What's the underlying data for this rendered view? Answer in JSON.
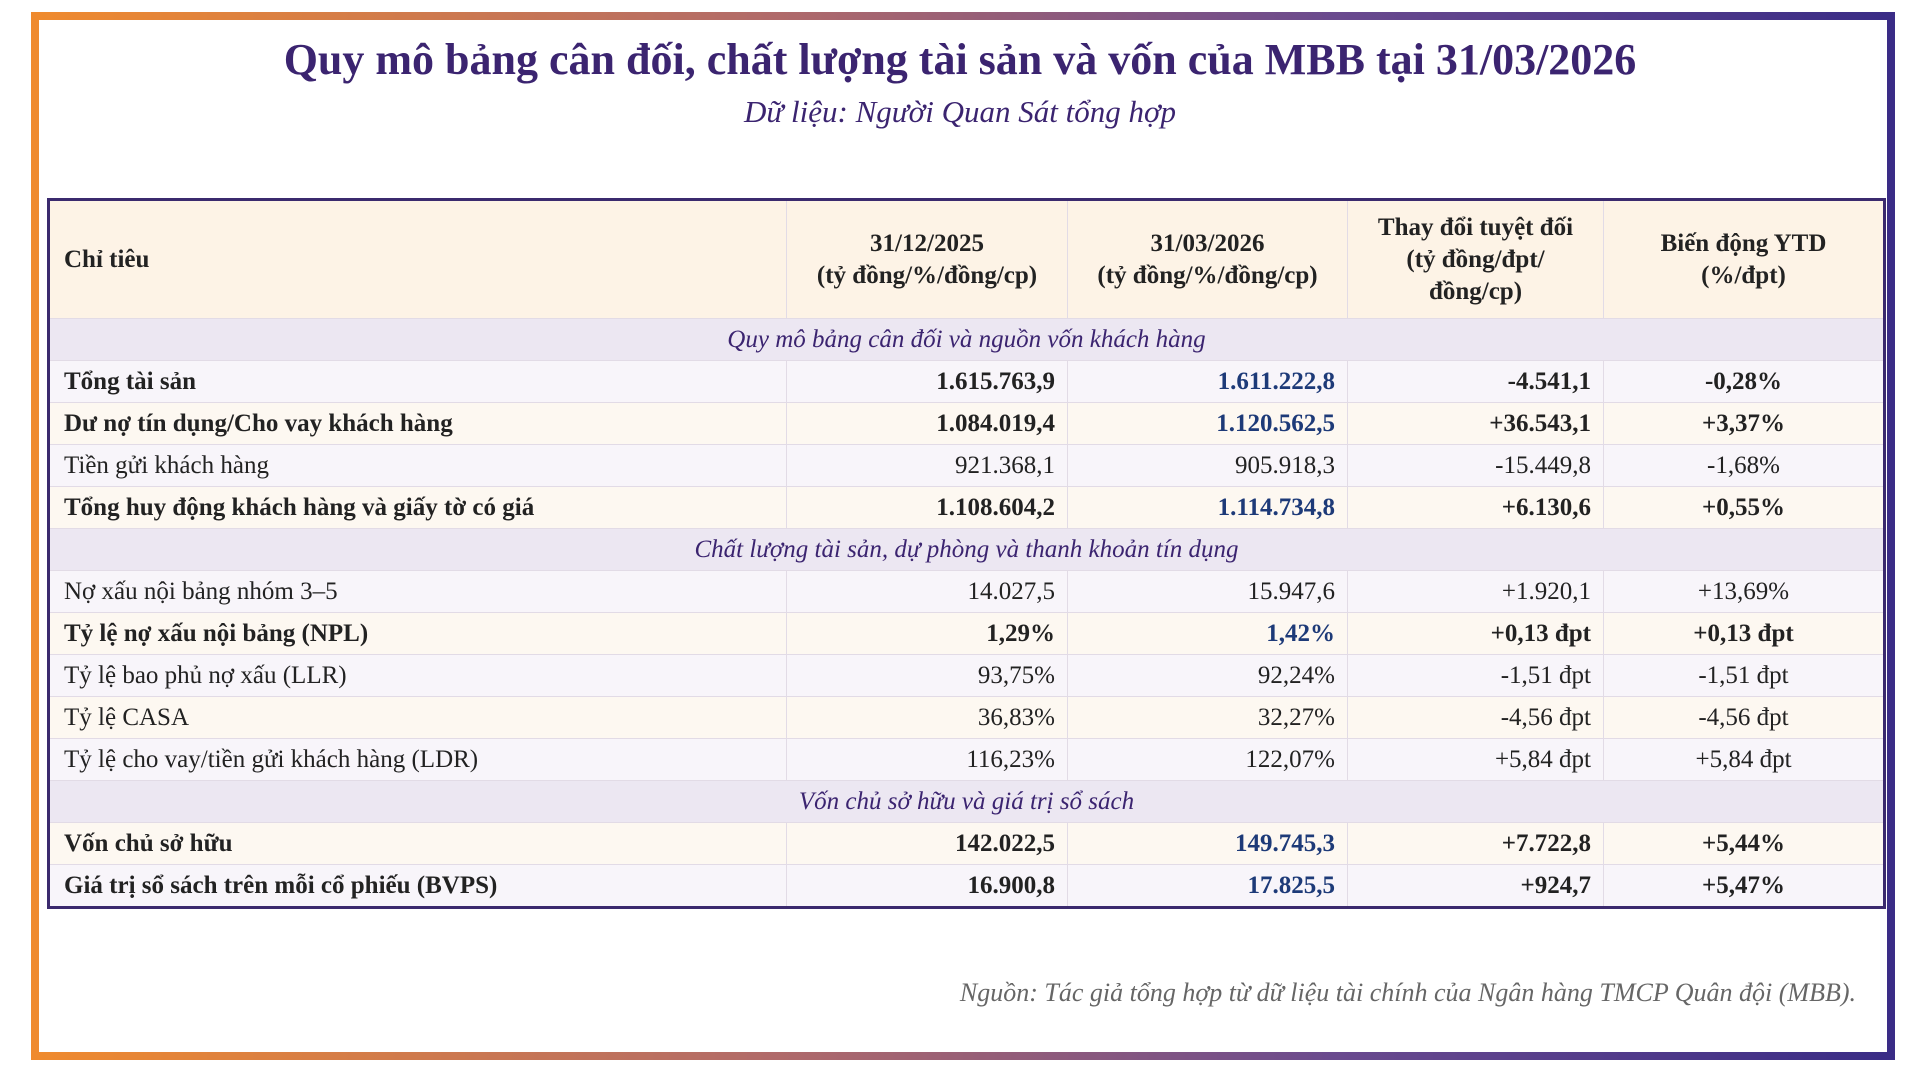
{
  "header": {
    "title": "Quy mô bảng cân đối, chất lượng tài sản và vốn của MBB tại 31/03/2026",
    "subtitle": "Dữ liệu: Người Quan Sát tổng hợp"
  },
  "table": {
    "columns": [
      {
        "label": "Chỉ tiêu"
      },
      {
        "label": "31/12/2025",
        "unit": "(tỷ đồng/%/đồng/cp)"
      },
      {
        "label": "31/03/2026",
        "unit": "(tỷ đồng/%/đồng/cp)"
      },
      {
        "label": "Thay đổi tuyệt đối",
        "unit": "(tỷ đồng/đpt/đồng/cp)"
      },
      {
        "label": "Biến động YTD",
        "unit": "(%/đpt)"
      }
    ],
    "sections": [
      {
        "title": "Quy mô bảng cân đối và nguồn vốn khách hàng",
        "rows": [
          {
            "bold": true,
            "cells": [
              "Tổng tài sản",
              "1.615.763,9",
              "1.611.222,8",
              "-4.541,1",
              "-0,28%"
            ]
          },
          {
            "bold": true,
            "cells": [
              "Dư nợ tín dụng/Cho vay khách hàng",
              "1.084.019,4",
              "1.120.562,5",
              "+36.543,1",
              "+3,37%"
            ]
          },
          {
            "bold": false,
            "cells": [
              "Tiền gửi khách hàng",
              "921.368,1",
              "905.918,3",
              "-15.449,8",
              "-1,68%"
            ]
          },
          {
            "bold": true,
            "cells": [
              "Tổng huy động khách hàng và giấy tờ có giá",
              "1.108.604,2",
              "1.114.734,8",
              "+6.130,6",
              "+0,55%"
            ]
          }
        ]
      },
      {
        "title": "Chất lượng tài sản, dự phòng và thanh khoản tín dụng",
        "rows": [
          {
            "bold": false,
            "cells": [
              "Nợ xấu nội bảng nhóm 3–5",
              "14.027,5",
              "15.947,6",
              "+1.920,1",
              "+13,69%"
            ]
          },
          {
            "bold": true,
            "cells": [
              "Tỷ lệ nợ xấu nội bảng (NPL)",
              "1,29%",
              "1,42%",
              "+0,13 đpt",
              "+0,13 đpt"
            ]
          },
          {
            "bold": false,
            "cells": [
              "Tỷ lệ bao phủ nợ xấu (LLR)",
              "93,75%",
              "92,24%",
              "-1,51 đpt",
              "-1,51 đpt"
            ]
          },
          {
            "bold": false,
            "cells": [
              "Tỷ lệ CASA",
              "36,83%",
              "32,27%",
              "-4,56 đpt",
              "-4,56 đpt"
            ]
          },
          {
            "bold": false,
            "cells": [
              "Tỷ lệ cho vay/tiền gửi khách hàng (LDR)",
              "116,23%",
              "122,07%",
              "+5,84 đpt",
              "+5,84 đpt"
            ]
          }
        ]
      },
      {
        "title": "Vốn chủ sở hữu và giá trị sổ sách",
        "rows": [
          {
            "bold": true,
            "cells": [
              "Vốn chủ sở hữu",
              "142.022,5",
              "149.745,3",
              "+7.722,8",
              "+5,44%"
            ]
          },
          {
            "bold": true,
            "cells": [
              "Giá trị sổ sách trên mỗi cổ phiếu (BVPS)",
              "16.900,8",
              "17.825,5",
              "+924,7",
              "+5,47%"
            ]
          }
        ]
      }
    ]
  },
  "footer": {
    "source": "Nguồn: Tác giả tổng hợp từ dữ liệu tài chính của Ngân hàng TMCP Quân đội (MBB)."
  }
}
